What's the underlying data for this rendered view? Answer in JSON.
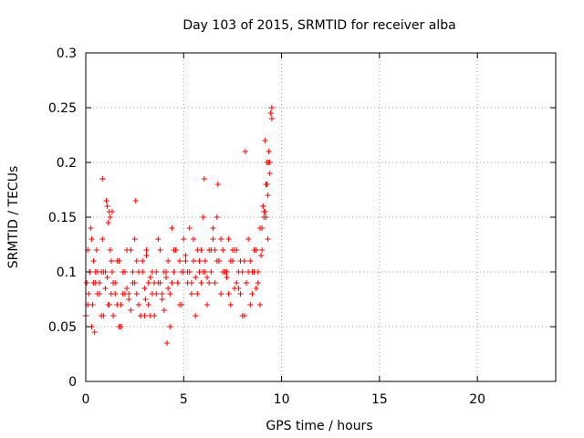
{
  "chart_data": {
    "type": "scatter",
    "title": "Day 103 of 2015, SRMTID for receiver alba",
    "xlabel": "GPS time / hours",
    "ylabel": "SRMTID / TECUs",
    "xlim": [
      0,
      24
    ],
    "ylim": [
      0,
      0.3
    ],
    "x_ticks": [
      0,
      5,
      10,
      15,
      20
    ],
    "y_ticks": [
      0,
      0.05,
      0.1,
      0.15,
      0.2,
      0.25,
      0.3
    ],
    "x_tick_labels": [
      "0",
      "5",
      "10",
      "15",
      "20"
    ],
    "y_tick_labels": [
      "0",
      "0.05",
      "0.1",
      "0.15",
      "0.2",
      "0.25",
      "0.3"
    ],
    "grid": true,
    "marker": "plus",
    "colors": {
      "points": "#ff0000",
      "grid": "#a0a0a0",
      "axes": "#000000"
    },
    "series": [
      {
        "x": [
          0.0,
          0.05,
          0.1,
          0.15,
          0.2,
          0.25,
          0.3,
          0.35,
          0.4,
          0.45,
          0.5,
          0.55,
          0.6,
          0.7,
          0.8,
          0.85,
          0.9,
          1.0,
          1.05,
          1.1,
          1.15,
          1.2,
          1.25,
          1.3,
          1.35,
          1.4,
          1.5,
          1.6,
          1.7,
          1.8,
          1.9,
          2.0,
          2.1,
          2.2,
          2.3,
          2.4,
          2.5,
          2.6,
          2.7,
          2.8,
          2.9,
          3.0,
          3.1,
          3.2,
          3.3,
          3.4,
          3.5,
          3.6,
          3.7,
          3.8,
          3.9,
          4.0,
          4.1,
          4.2,
          4.3,
          4.4,
          4.5,
          4.6,
          4.7,
          4.8,
          4.9,
          5.0,
          5.1,
          5.2,
          5.3,
          5.4,
          5.5,
          5.6,
          5.7,
          5.8,
          5.9,
          6.0,
          6.1,
          6.2,
          6.3,
          6.4,
          6.5,
          6.6,
          6.7,
          6.8,
          6.9,
          7.0,
          7.1,
          7.2,
          7.3,
          7.4,
          7.5,
          7.6,
          7.7,
          7.8,
          7.9,
          8.0,
          8.1,
          8.2,
          8.3,
          8.4,
          8.5,
          8.6,
          8.7,
          8.8,
          8.9,
          9.0,
          9.05,
          9.1,
          9.15,
          9.2,
          9.25,
          9.3,
          9.35,
          9.4,
          9.45,
          9.5,
          0.1,
          0.3,
          0.5,
          0.7,
          0.9,
          1.1,
          1.3,
          1.5,
          1.7,
          1.9,
          2.1,
          2.3,
          2.5,
          2.7,
          2.9,
          3.1,
          3.3,
          3.5,
          3.7,
          3.9,
          4.1,
          4.3,
          4.5,
          4.7,
          4.9,
          5.1,
          5.3,
          5.5,
          5.7,
          5.9,
          6.1,
          6.3,
          6.5,
          6.7,
          6.9,
          7.1,
          7.3,
          7.5,
          7.7,
          7.9,
          8.1,
          8.3,
          8.5,
          8.7,
          8.9,
          9.1,
          9.3,
          9.5,
          0.2,
          0.6,
          1.0,
          1.4,
          1.8,
          2.2,
          2.6,
          3.0,
          3.4,
          3.8,
          4.2,
          4.6,
          5.0,
          5.4,
          5.8,
          6.2,
          6.6,
          7.0,
          7.4,
          7.8,
          8.2,
          8.6,
          9.0,
          9.4,
          0.4,
          0.8,
          1.2,
          1.6,
          2.0,
          2.4,
          2.8,
          3.2,
          3.6,
          4.0,
          4.4,
          4.8,
          5.2,
          5.6,
          6.0,
          6.4,
          6.8,
          7.2,
          7.6,
          8.0,
          8.4,
          8.8,
          9.2,
          9.45,
          9.35,
          9.25,
          9.15,
          9.05,
          8.95,
          1.35,
          1.25,
          2.55,
          6.05,
          6.75,
          8.15,
          0.85,
          1.15,
          4.15,
          3.05
        ],
        "y": [
          0.06,
          0.09,
          0.12,
          0.08,
          0.1,
          0.14,
          0.05,
          0.07,
          0.11,
          0.045,
          0.09,
          0.12,
          0.1,
          0.08,
          0.06,
          0.13,
          0.1,
          0.085,
          0.165,
          0.095,
          0.07,
          0.155,
          0.12,
          0.08,
          0.1,
          0.06,
          0.09,
          0.07,
          0.11,
          0.05,
          0.08,
          0.1,
          0.12,
          0.075,
          0.065,
          0.09,
          0.13,
          0.08,
          0.1,
          0.06,
          0.11,
          0.085,
          0.12,
          0.07,
          0.095,
          0.08,
          0.06,
          0.1,
          0.09,
          0.12,
          0.075,
          0.065,
          0.095,
          0.11,
          0.08,
          0.14,
          0.1,
          0.12,
          0.09,
          0.07,
          0.1,
          0.13,
          0.115,
          0.09,
          0.14,
          0.08,
          0.11,
          0.06,
          0.12,
          0.1,
          0.09,
          0.15,
          0.11,
          0.07,
          0.12,
          0.1,
          0.13,
          0.09,
          0.15,
          0.11,
          0.08,
          0.12,
          0.1,
          0.095,
          0.13,
          0.07,
          0.11,
          0.085,
          0.12,
          0.1,
          0.08,
          0.06,
          0.11,
          0.09,
          0.13,
          0.07,
          0.1,
          0.12,
          0.085,
          0.1,
          0.14,
          0.12,
          0.16,
          0.15,
          0.22,
          0.18,
          0.2,
          0.17,
          0.21,
          0.19,
          0.245,
          0.25,
          0.07,
          0.13,
          0.1,
          0.09,
          0.06,
          0.16,
          0.11,
          0.08,
          0.05,
          0.1,
          0.085,
          0.12,
          0.09,
          0.07,
          0.1,
          0.115,
          0.06,
          0.09,
          0.13,
          0.08,
          0.1,
          0.05,
          0.12,
          0.09,
          0.07,
          0.11,
          0.1,
          0.13,
          0.08,
          0.12,
          0.1,
          0.09,
          0.14,
          0.11,
          0.13,
          0.1,
          0.08,
          0.12,
          0.09,
          0.11,
          0.06,
          0.1,
          0.08,
          0.12,
          0.07,
          0.155,
          0.13,
          0.24,
          0.1,
          0.08,
          0.1,
          0.09,
          0.07,
          0.08,
          0.11,
          0.06,
          0.1,
          0.09,
          0.085,
          0.12,
          0.1,
          0.09,
          0.11,
          0.095,
          0.12,
          0.1,
          0.11,
          0.085,
          0.09,
          0.1,
          0.14,
          0.2,
          0.09,
          0.1,
          0.07,
          0.11,
          0.08,
          0.1,
          0.06,
          0.09,
          0.08,
          0.1,
          0.09,
          0.11,
          0.1,
          0.095,
          0.1,
          0.12,
          0.11,
          0.1,
          0.12,
          0.1,
          0.11,
          0.09,
          0.15,
          0.245,
          0.2,
          0.18,
          0.155,
          0.16,
          0.115,
          0.155,
          0.15,
          0.165,
          0.185,
          0.18,
          0.21,
          0.185,
          0.145,
          0.035,
          0.075
        ]
      }
    ]
  }
}
